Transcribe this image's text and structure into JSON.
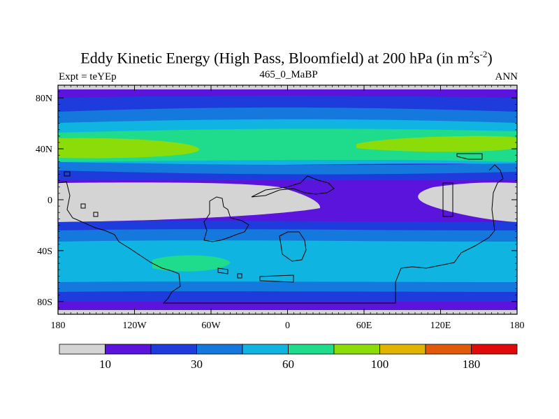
{
  "title": {
    "main": "Eddy Kinetic Energy (High Pass, Bloomfield) at 200 hPa (in m",
    "sup1": "2",
    "mid": "s",
    "sup2": "-2",
    "end": ")"
  },
  "subtitle": {
    "left": "Expt = teYEp",
    "center": "465_0_MaBP",
    "right": "ANN"
  },
  "axes": {
    "x_ticks": [
      "180",
      "120W",
      "60W",
      "0",
      "60E",
      "120E",
      "180"
    ],
    "y_ticks": [
      "80N",
      "40N",
      "0",
      "40S",
      "80S"
    ]
  },
  "colorbar": {
    "colors": [
      "#d4d4d4",
      "#5a14dc",
      "#1e3cdc",
      "#1478dc",
      "#10b4e0",
      "#1edc8c",
      "#8cdc0a",
      "#e0b400",
      "#e05a0a",
      "#e00a0a"
    ],
    "labels": [
      "10",
      "30",
      "60",
      "100",
      "180"
    ],
    "label_positions": [
      1,
      3,
      5,
      7,
      9
    ]
  }
}
